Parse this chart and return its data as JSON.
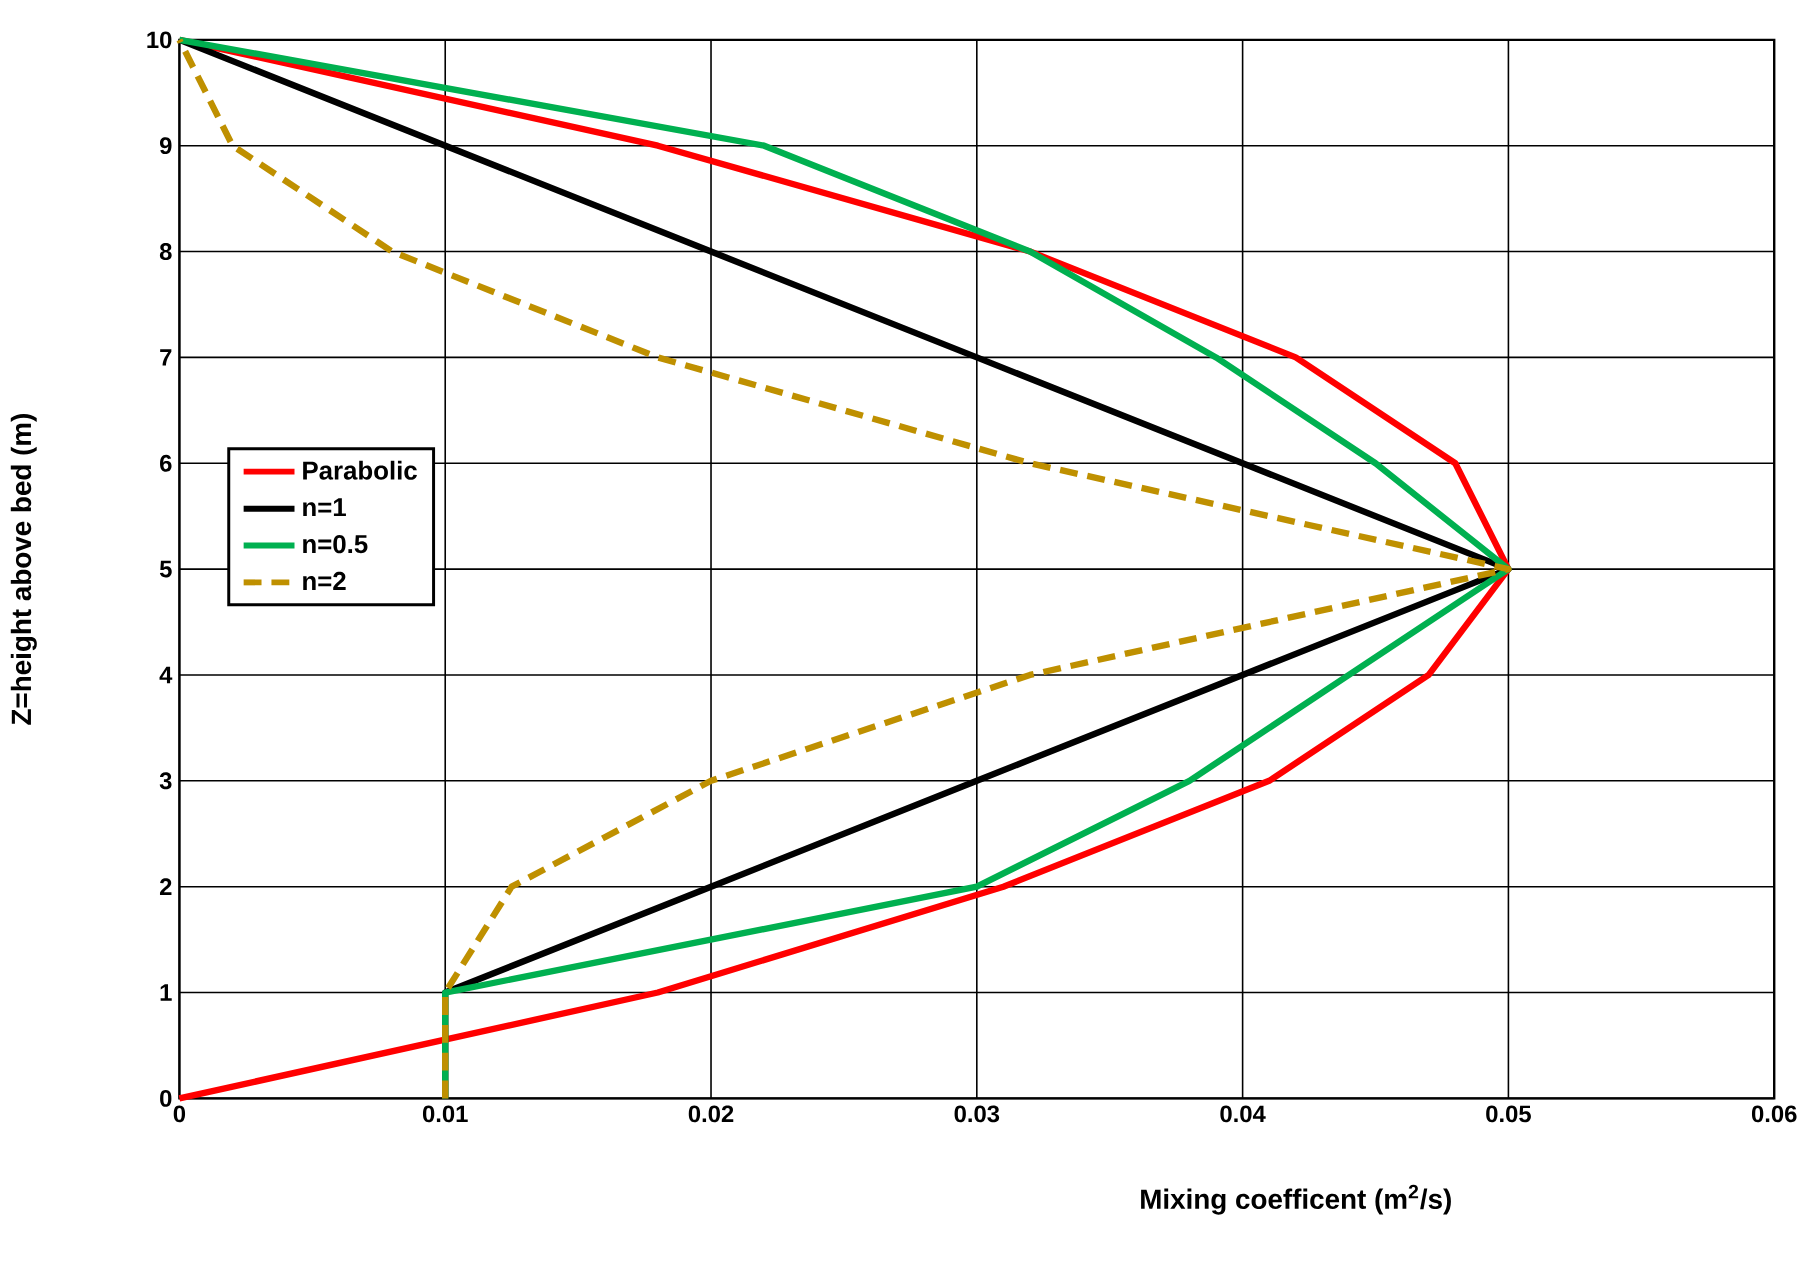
{
  "chart_data": {
    "type": "line",
    "xlabel": "Mixing coefficent (m$^{2}$/s)",
    "ylabel": "Z=height above bed (m)",
    "xlim": [
      0,
      0.06
    ],
    "xticks": [
      0,
      0.01,
      0.02,
      0.03,
      0.04,
      0.05,
      0.06
    ],
    "ylim": [
      0,
      10
    ],
    "yticks": [
      0,
      1,
      2,
      3,
      4,
      5,
      6,
      7,
      8,
      9,
      10
    ],
    "grid": true,
    "legend": "left",
    "marker": "none",
    "series": [
      {
        "name": "Parabolic",
        "color": "#ff0000",
        "line_style": "solid",
        "x": [
          0,
          0.018,
          0.031,
          0.041,
          0.047,
          0.05,
          0.048,
          0.042,
          0.032,
          0.018,
          0
        ],
        "values": [
          0,
          1,
          2,
          3,
          4,
          5,
          6,
          7,
          8,
          9,
          10
        ]
      },
      {
        "name": "n=1",
        "color": "#000000",
        "line_style": "solid",
        "x": [
          0.01,
          0.01,
          0.02,
          0.03,
          0.04,
          0.05,
          0.04,
          0.03,
          0.02,
          0.01,
          0
        ],
        "values": [
          0,
          1,
          2,
          3,
          4,
          5,
          6,
          7,
          8,
          9,
          10
        ]
      },
      {
        "name": "n=0.5",
        "color": "#00b050",
        "line_style": "solid",
        "x": [
          0.01,
          0.01,
          0.03,
          0.038,
          0.044,
          0.05,
          0.045,
          0.039,
          0.032,
          0.022,
          0
        ],
        "values": [
          0,
          1,
          2,
          3,
          4,
          5,
          6,
          7,
          8,
          9,
          10
        ]
      },
      {
        "name": "n=2",
        "color": "#bf9000",
        "line_style": "dashed",
        "x": [
          0.01,
          0.01,
          0.0125,
          0.02,
          0.032,
          0.05,
          0.032,
          0.018,
          0.008,
          0.002,
          0
        ],
        "values": [
          0,
          1,
          2,
          3,
          4,
          5,
          6,
          7,
          8,
          9,
          10
        ]
      }
    ]
  }
}
